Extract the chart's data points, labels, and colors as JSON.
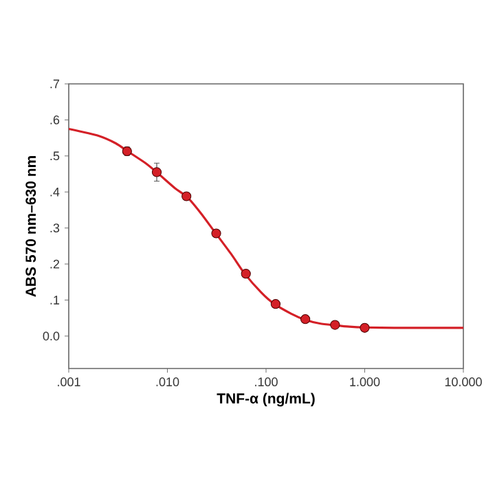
{
  "chart_data": {
    "type": "scatter",
    "xlabel": "TNF-α (ng/mL)",
    "ylabel": "ABS 570 nm–630 nm",
    "log": "x",
    "xlim": [
      0.001,
      10
    ],
    "ylim": [
      -0.09,
      0.7
    ],
    "xticks": [
      {
        "value": 0.001,
        "label": ".001"
      },
      {
        "value": 0.01,
        "label": ".010"
      },
      {
        "value": 0.1,
        "label": ".100"
      },
      {
        "value": 1,
        "label": "1.000"
      },
      {
        "value": 10,
        "label": "10.000"
      }
    ],
    "yticks": [
      {
        "value": 0,
        "label": "0.0"
      },
      {
        "value": 0.1,
        "label": ".1"
      },
      {
        "value": 0.2,
        "label": ".2"
      },
      {
        "value": 0.3,
        "label": ".3"
      },
      {
        "value": 0.4,
        "label": ".4"
      },
      {
        "value": 0.5,
        "label": ".5"
      },
      {
        "value": 0.6,
        "label": ".6"
      },
      {
        "value": 0.7,
        "label": ".7"
      }
    ],
    "series": [
      {
        "type": "line",
        "color": "#d42027",
        "marker": "none",
        "line_style": "solid",
        "x": [
          0.001,
          0.002,
          0.003,
          0.004,
          0.006,
          0.008,
          0.012,
          0.016,
          0.022,
          0.03,
          0.045,
          0.06,
          0.09,
          0.12,
          0.18,
          0.25,
          0.35,
          0.5,
          0.7,
          1,
          2,
          5,
          10
        ],
        "values": [
          0.575,
          0.556,
          0.535,
          0.512,
          0.48,
          0.452,
          0.41,
          0.385,
          0.34,
          0.29,
          0.225,
          0.175,
          0.12,
          0.09,
          0.062,
          0.045,
          0.035,
          0.03,
          0.026,
          0.024,
          0.023,
          0.023,
          0.023
        ]
      },
      {
        "color": "#d42027",
        "marker": "circle",
        "x": [
          0.0039,
          0.0078,
          0.0156,
          0.03125,
          0.0625,
          0.125,
          0.25,
          0.5,
          1.0
        ],
        "values": [
          0.513,
          0.455,
          0.388,
          0.285,
          0.173,
          0.089,
          0.047,
          0.031,
          0.023
        ],
        "errors": [
          0.012,
          0.025,
          null,
          null,
          null,
          null,
          null,
          null,
          null
        ]
      }
    ]
  }
}
